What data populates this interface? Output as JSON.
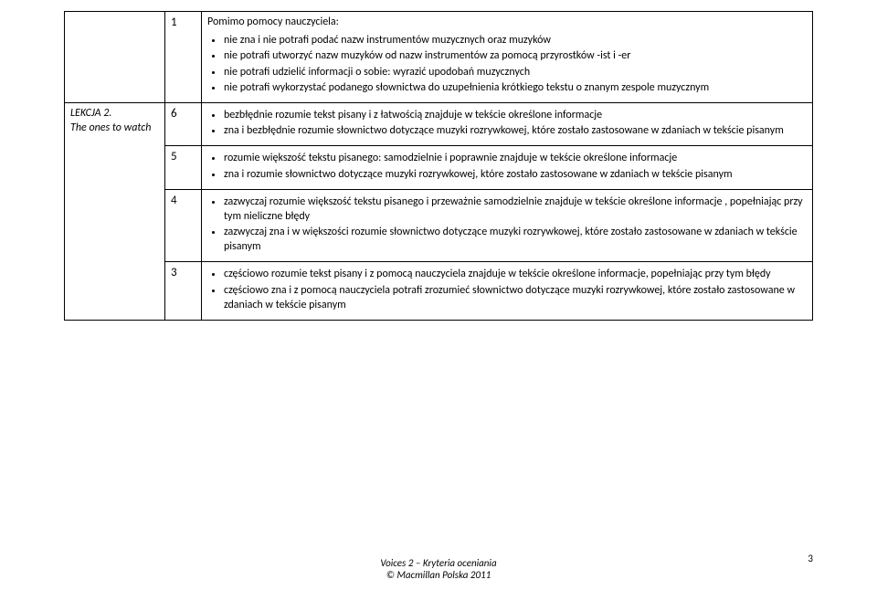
{
  "lesson": {
    "label_line1": "LEKCJA 2.",
    "label_line2": "The ones to watch"
  },
  "rows": [
    {
      "num": "1",
      "intro": "Pomimo pomocy nauczyciela:",
      "bullets": [
        "nie zna i nie potrafi podać nazw instrumentów muzycznych oraz muzyków",
        "nie potrafi utworzyć nazw muzyków od nazw instrumentów za pomocą przyrostków  -ist i -er",
        "nie potrafi udzielić informacji o sobie: wyrazić upodobań muzycznych",
        "nie potrafi wykorzystać podanego słownictwa do uzupełnienia krótkiego tekstu o znanym zespole muzycznym"
      ]
    },
    {
      "num": "6",
      "bullets": [
        "bezbłędnie rozumie tekst pisany i z łatwością znajduje w tekście określone informacje",
        "zna i bezbłędnie rozumie słownictwo dotyczące muzyki rozrywkowej, które zostało zastosowane w zdaniach w tekście pisanym"
      ]
    },
    {
      "num": "5",
      "bullets": [
        "rozumie większość tekstu pisanego: samodzielnie i poprawnie znajduje w tekście określone informacje",
        "zna i rozumie słownictwo dotyczące muzyki rozrywkowej, które zostało zastosowane w zdaniach w tekście pisanym"
      ]
    },
    {
      "num": "4",
      "bullets": [
        "zazwyczaj rozumie większość tekstu pisanego i przeważnie samodzielnie znajduje w tekście określone informacje , popełniając przy tym nieliczne błędy",
        "zazwyczaj zna i w większości rozumie słownictwo dotyczące muzyki rozrywkowej, które zostało zastosowane w  zdaniach w tekście pisanym"
      ]
    },
    {
      "num": "3",
      "bullets": [
        "częściowo rozumie tekst pisany i z pomocą nauczyciela znajduje w tekście określone informacje, popełniając przy tym błędy",
        "częściowo zna i z pomocą nauczyciela potrafi zrozumieć słownictwo dotyczące muzyki rozrywkowej, które zostało zastosowane w zdaniach w tekście pisanym"
      ]
    }
  ],
  "footer_line1": "Voices 2 – Kryteria oceniania",
  "footer_line2": "© Macmillan Polska 2011",
  "page_number": "3"
}
